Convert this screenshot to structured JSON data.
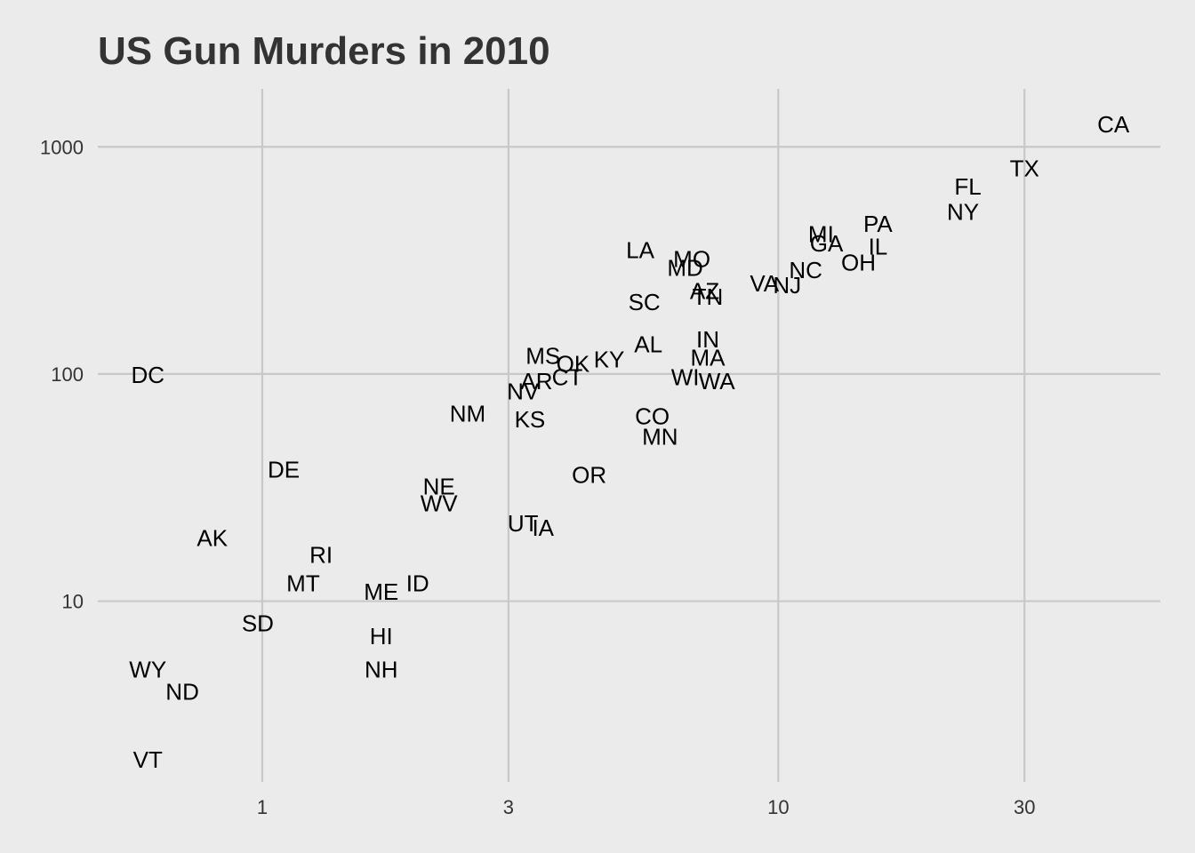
{
  "chart_data": {
    "type": "scatter",
    "title": "US Gun Murders in 2010",
    "xlabel": "",
    "ylabel": "",
    "x_scale": "log10",
    "y_scale": "log10",
    "xlim": [
      0.48,
      55
    ],
    "ylim": [
      1.6,
      1800
    ],
    "x_ticks": [
      1,
      3,
      10,
      30
    ],
    "y_ticks": [
      10,
      100,
      1000
    ],
    "x_tick_labels": [
      "1",
      "3",
      "10",
      "30"
    ],
    "y_tick_labels": [
      "10",
      "100",
      "1000"
    ],
    "grid": true,
    "legend": "none",
    "points": [
      {
        "label": "CA",
        "x": 44.6,
        "y": 1257
      },
      {
        "label": "TX",
        "x": 30.0,
        "y": 805
      },
      {
        "label": "FL",
        "x": 23.3,
        "y": 669
      },
      {
        "label": "NY",
        "x": 22.8,
        "y": 517
      },
      {
        "label": "PA",
        "x": 15.6,
        "y": 457
      },
      {
        "label": "IL",
        "x": 15.6,
        "y": 364
      },
      {
        "label": "MI",
        "x": 12.1,
        "y": 413
      },
      {
        "label": "GA",
        "x": 12.4,
        "y": 376
      },
      {
        "label": "OH",
        "x": 14.3,
        "y": 310
      },
      {
        "label": "NC",
        "x": 11.3,
        "y": 286
      },
      {
        "label": "NJ",
        "x": 10.4,
        "y": 246
      },
      {
        "label": "VA",
        "x": 9.4,
        "y": 250
      },
      {
        "label": "MO",
        "x": 6.8,
        "y": 321
      },
      {
        "label": "MD",
        "x": 6.6,
        "y": 293
      },
      {
        "label": "LA",
        "x": 5.4,
        "y": 351
      },
      {
        "label": "AZ",
        "x": 7.2,
        "y": 232
      },
      {
        "label": "TN",
        "x": 7.3,
        "y": 219
      },
      {
        "label": "SC",
        "x": 5.5,
        "y": 207
      },
      {
        "label": "IN",
        "x": 7.3,
        "y": 142
      },
      {
        "label": "AL",
        "x": 5.6,
        "y": 135
      },
      {
        "label": "MA",
        "x": 7.3,
        "y": 118
      },
      {
        "label": "KY",
        "x": 4.7,
        "y": 116
      },
      {
        "label": "OK",
        "x": 4.0,
        "y": 111
      },
      {
        "label": "WI",
        "x": 6.6,
        "y": 97
      },
      {
        "label": "WA",
        "x": 7.6,
        "y": 93
      },
      {
        "label": "MS",
        "x": 3.5,
        "y": 120
      },
      {
        "label": "CT",
        "x": 3.9,
        "y": 97
      },
      {
        "label": "AR",
        "x": 3.4,
        "y": 93
      },
      {
        "label": "NV",
        "x": 3.2,
        "y": 84
      },
      {
        "label": "NM",
        "x": 2.5,
        "y": 67
      },
      {
        "label": "KS",
        "x": 3.3,
        "y": 63
      },
      {
        "label": "CO",
        "x": 5.7,
        "y": 65
      },
      {
        "label": "MN",
        "x": 5.9,
        "y": 53
      },
      {
        "label": "OR",
        "x": 4.3,
        "y": 36
      },
      {
        "label": "NE",
        "x": 2.2,
        "y": 32
      },
      {
        "label": "WV",
        "x": 2.2,
        "y": 27
      },
      {
        "label": "UT",
        "x": 3.2,
        "y": 22
      },
      {
        "label": "IA",
        "x": 3.5,
        "y": 21
      },
      {
        "label": "DC",
        "x": 0.6,
        "y": 99
      },
      {
        "label": "DE",
        "x": 1.1,
        "y": 38
      },
      {
        "label": "AK",
        "x": 0.8,
        "y": 19
      },
      {
        "label": "RI",
        "x": 1.3,
        "y": 16
      },
      {
        "label": "MT",
        "x": 1.2,
        "y": 12
      },
      {
        "label": "ME",
        "x": 1.7,
        "y": 11
      },
      {
        "label": "ID",
        "x": 2.0,
        "y": 12
      },
      {
        "label": "SD",
        "x": 0.98,
        "y": 8
      },
      {
        "label": "HI",
        "x": 1.7,
        "y": 7
      },
      {
        "label": "NH",
        "x": 1.7,
        "y": 5
      },
      {
        "label": "WY",
        "x": 0.6,
        "y": 5
      },
      {
        "label": "ND",
        "x": 0.7,
        "y": 4
      },
      {
        "label": "VT",
        "x": 0.6,
        "y": 2
      }
    ]
  }
}
